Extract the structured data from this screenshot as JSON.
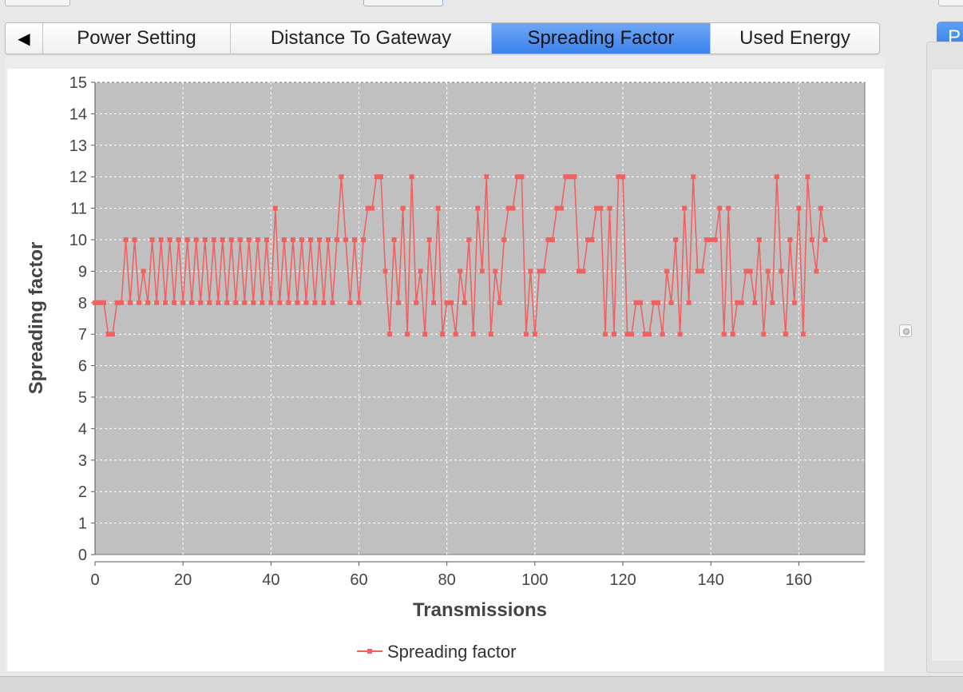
{
  "tabs": {
    "scroll_left_glyph": "◀",
    "items": [
      {
        "label": "Power Setting",
        "active": false
      },
      {
        "label": "Distance To Gateway",
        "active": false
      },
      {
        "label": "Spreading Factor",
        "active": true
      },
      {
        "label": "Used Energy",
        "active": false
      }
    ]
  },
  "side_button": {
    "label": "P"
  },
  "colors": {
    "series": "#f06262",
    "plot_background": "#c0c0c0",
    "active_tab": "#4a8ef0"
  },
  "chart_data": {
    "type": "line",
    "xlabel": "Transmissions",
    "ylabel": "Spreading factor",
    "xlim": [
      0,
      175
    ],
    "ylim": [
      0,
      15
    ],
    "xticks": [
      0,
      20,
      40,
      60,
      80,
      100,
      120,
      140,
      160
    ],
    "yticks": [
      0,
      1,
      2,
      3,
      4,
      5,
      6,
      7,
      8,
      9,
      10,
      11,
      12,
      13,
      14,
      15
    ],
    "grid": true,
    "legend_position": "bottom",
    "series": [
      {
        "name": "Spreading factor",
        "x": [
          0,
          1,
          2,
          3,
          4,
          5,
          6,
          7,
          8,
          9,
          10,
          11,
          12,
          13,
          14,
          15,
          16,
          17,
          18,
          19,
          20,
          21,
          22,
          23,
          24,
          25,
          26,
          27,
          28,
          29,
          30,
          31,
          32,
          33,
          34,
          35,
          36,
          37,
          38,
          39,
          40,
          41,
          42,
          43,
          44,
          45,
          46,
          47,
          48,
          49,
          50,
          51,
          52,
          53,
          54,
          55,
          56,
          57,
          58,
          59,
          60,
          61,
          62,
          63,
          64,
          65,
          66,
          67,
          68,
          69,
          70,
          71,
          72,
          73,
          74,
          75,
          76,
          77,
          78,
          79,
          80,
          81,
          82,
          83,
          84,
          85,
          86,
          87,
          88,
          89,
          90,
          91,
          92,
          93,
          94,
          95,
          96,
          97,
          98,
          99,
          100,
          101,
          102,
          103,
          104,
          105,
          106,
          107,
          108,
          109,
          110,
          111,
          112,
          113,
          114,
          115,
          116,
          117,
          118,
          119,
          120,
          121,
          122,
          123,
          124,
          125,
          126,
          127,
          128,
          129,
          130,
          131,
          132,
          133,
          134,
          135,
          136,
          137,
          138,
          139,
          140,
          141,
          142,
          143,
          144,
          145,
          146,
          147,
          148,
          149,
          150,
          151,
          152,
          153,
          154,
          155,
          156,
          157,
          158,
          159,
          160,
          161,
          162,
          163,
          164,
          165,
          166
        ],
        "y": [
          8,
          8,
          8,
          7,
          7,
          8,
          8,
          10,
          8,
          10,
          8,
          9,
          8,
          10,
          8,
          10,
          8,
          10,
          8,
          10,
          8,
          10,
          8,
          10,
          8,
          10,
          8,
          10,
          8,
          10,
          8,
          10,
          8,
          10,
          8,
          10,
          8,
          10,
          8,
          10,
          8,
          11,
          8,
          10,
          8,
          10,
          8,
          10,
          8,
          10,
          8,
          10,
          8,
          10,
          8,
          10,
          12,
          10,
          8,
          10,
          8,
          10,
          11,
          11,
          12,
          12,
          9,
          7,
          10,
          8,
          11,
          7,
          12,
          8,
          9,
          7,
          10,
          8,
          11,
          7,
          8,
          8,
          7,
          9,
          8,
          10,
          7,
          11,
          9,
          12,
          7,
          9,
          8,
          10,
          11,
          11,
          12,
          12,
          7,
          9,
          7,
          9,
          9,
          10,
          10,
          11,
          11,
          12,
          12,
          12,
          9,
          9,
          10,
          10,
          11,
          11,
          7,
          11,
          7,
          12,
          12,
          7,
          7,
          8,
          8,
          7,
          7,
          8,
          8,
          7,
          9,
          8,
          10,
          7,
          11,
          8,
          12,
          9,
          9,
          10,
          10,
          10,
          11,
          7,
          11,
          7,
          8,
          8,
          9,
          9,
          8,
          10,
          7,
          9,
          8,
          12,
          9,
          7,
          10,
          8,
          11,
          7,
          12,
          10,
          9,
          11,
          10
        ]
      }
    ]
  }
}
